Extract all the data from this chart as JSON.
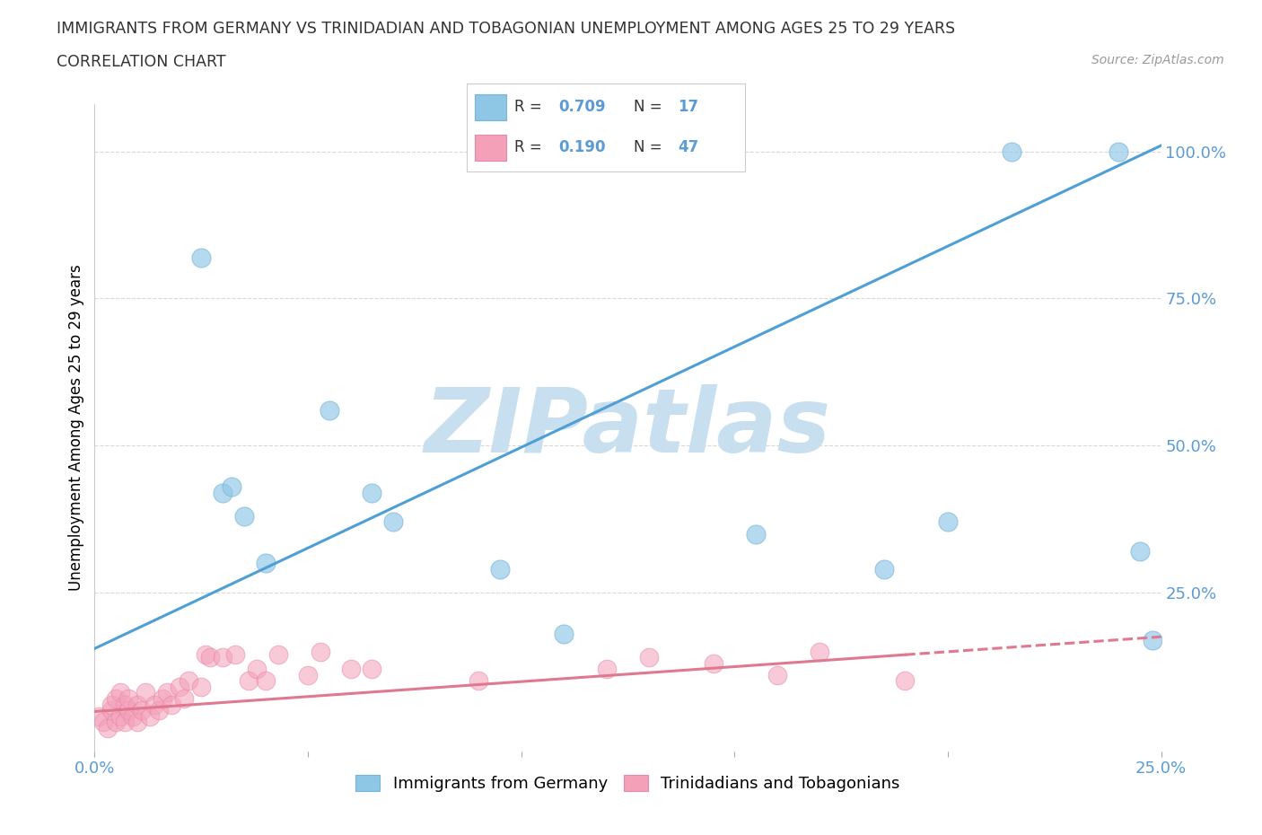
{
  "title_line1": "IMMIGRANTS FROM GERMANY VS TRINIDADIAN AND TOBAGONIAN UNEMPLOYMENT AMONG AGES 25 TO 29 YEARS",
  "title_line2": "CORRELATION CHART",
  "source_text": "Source: ZipAtlas.com",
  "ylabel": "Unemployment Among Ages 25 to 29 years",
  "xlim": [
    0.0,
    0.25
  ],
  "ylim": [
    -0.02,
    1.08
  ],
  "x_ticks": [
    0.0,
    0.05,
    0.1,
    0.15,
    0.2,
    0.25
  ],
  "x_tick_labels": [
    "0.0%",
    "",
    "",
    "",
    "",
    "25.0%"
  ],
  "y_ticks_right": [
    0.0,
    0.25,
    0.5,
    0.75,
    1.0
  ],
  "y_tick_labels_right": [
    "",
    "25.0%",
    "50.0%",
    "75.0%",
    "100.0%"
  ],
  "blue_color": "#8ec6e6",
  "blue_edge_color": "#78b4d8",
  "pink_color": "#f4a0b8",
  "pink_edge_color": "#e888a8",
  "blue_line_color": "#4d9fd6",
  "pink_line_color": "#e07890",
  "watermark": "ZIPatlas",
  "watermark_color": "#c8dff0",
  "grid_color": "#d8d8d8",
  "background_color": "#ffffff",
  "blue_x": [
    0.025,
    0.03,
    0.032,
    0.035,
    0.04,
    0.055,
    0.065,
    0.07,
    0.095,
    0.11,
    0.155,
    0.185,
    0.2,
    0.215,
    0.24,
    0.245,
    0.248
  ],
  "blue_y": [
    0.82,
    0.42,
    0.43,
    0.38,
    0.3,
    0.56,
    0.42,
    0.37,
    0.29,
    0.18,
    0.35,
    0.29,
    0.37,
    1.0,
    1.0,
    0.32,
    0.17
  ],
  "pink_x": [
    0.001,
    0.002,
    0.003,
    0.004,
    0.004,
    0.005,
    0.005,
    0.006,
    0.006,
    0.007,
    0.007,
    0.008,
    0.008,
    0.009,
    0.01,
    0.01,
    0.011,
    0.012,
    0.013,
    0.014,
    0.015,
    0.016,
    0.017,
    0.018,
    0.02,
    0.021,
    0.022,
    0.025,
    0.026,
    0.027,
    0.03,
    0.033,
    0.036,
    0.038,
    0.04,
    0.043,
    0.05,
    0.053,
    0.06,
    0.065,
    0.09,
    0.12,
    0.13,
    0.145,
    0.16,
    0.17,
    0.19
  ],
  "pink_y": [
    0.04,
    0.03,
    0.02,
    0.05,
    0.06,
    0.03,
    0.07,
    0.04,
    0.08,
    0.03,
    0.06,
    0.05,
    0.07,
    0.04,
    0.03,
    0.06,
    0.05,
    0.08,
    0.04,
    0.06,
    0.05,
    0.07,
    0.08,
    0.06,
    0.09,
    0.07,
    0.1,
    0.09,
    0.145,
    0.14,
    0.14,
    0.145,
    0.1,
    0.12,
    0.1,
    0.145,
    0.11,
    0.15,
    0.12,
    0.12,
    0.1,
    0.12,
    0.14,
    0.13,
    0.11,
    0.15,
    0.1
  ],
  "blue_line_x0": 0.0,
  "blue_line_y0": 0.155,
  "blue_line_x1": 0.25,
  "blue_line_y1": 1.01,
  "pink_line_x0": 0.0,
  "pink_line_y0": 0.048,
  "pink_line_x1": 0.25,
  "pink_line_y1": 0.175
}
